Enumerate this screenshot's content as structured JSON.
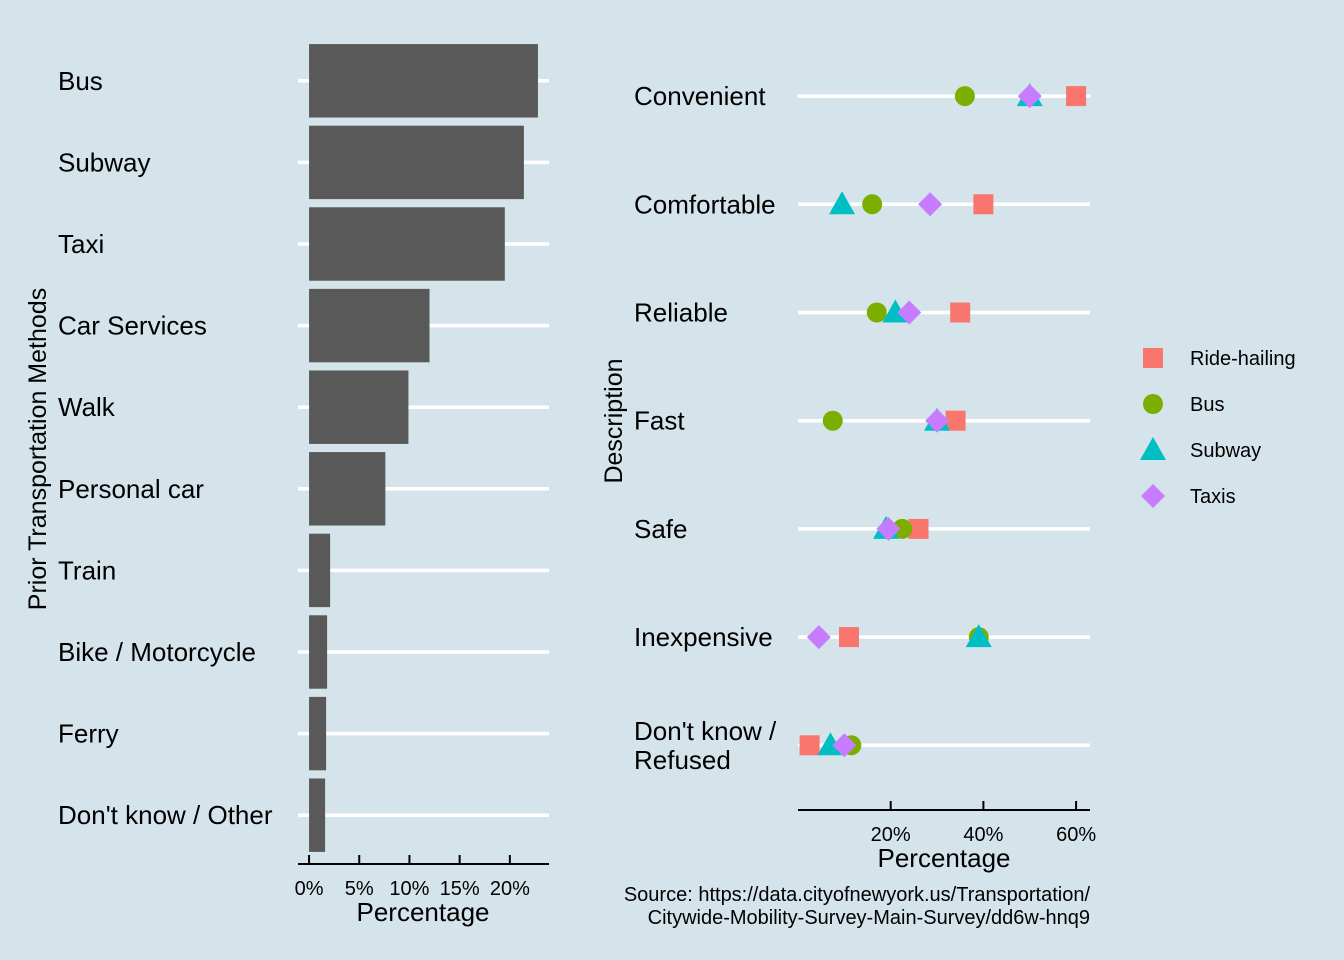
{
  "colors": {
    "background": "#d5e4eb",
    "bar": "#595959",
    "grid": "#ffffff",
    "Ride-hailing": "#f8766d",
    "Bus": "#7cae00",
    "Subway": "#00bfc4",
    "Taxis": "#c77cff"
  },
  "source_line1": "Source: https://data.cityofnewyork.us/Transportation/",
  "source_line2": "Citywide-Mobility-Survey-Main-Survey/dd6w-hnq9",
  "chart_data": [
    {
      "type": "bar",
      "orientation": "horizontal",
      "xlabel": "Percentage",
      "ylabel": "Prior Transportation Methods",
      "xlim": [
        -1.1,
        23.9
      ],
      "xticks": [
        0,
        5,
        10,
        15,
        20
      ],
      "xtick_labels": [
        "0%",
        "5%",
        "10%",
        "15%",
        "20%"
      ],
      "categories": [
        "Bus",
        "Subway",
        "Taxi",
        "Car Services",
        "Walk",
        "Personal car",
        "Train",
        "Bike / Motorcycle",
        "Ferry",
        "Don't know / Other"
      ],
      "values": [
        22.8,
        21.4,
        19.5,
        12.0,
        9.9,
        7.6,
        2.1,
        1.8,
        1.7,
        1.6
      ]
    },
    {
      "type": "scatter",
      "xlabel": "Percentage",
      "ylabel": "Description",
      "xlim": [
        0,
        63
      ],
      "xticks": [
        20,
        40,
        60
      ],
      "xtick_labels": [
        "20%",
        "40%",
        "60%"
      ],
      "categories": [
        "Convenient",
        "Comfortable",
        "Reliable",
        "Fast",
        "Safe",
        "Inexpensive",
        "Don't know / Refused"
      ],
      "category_lines": [
        [
          "Convenient"
        ],
        [
          "Comfortable"
        ],
        [
          "Reliable"
        ],
        [
          "Fast"
        ],
        [
          "Safe"
        ],
        [
          "Inexpensive"
        ],
        [
          "Don't know /",
          "Refused"
        ]
      ],
      "legend_position": "right",
      "series": [
        {
          "name": "Ride-hailing",
          "shape": "square",
          "values": [
            60,
            40,
            35,
            34,
            26,
            11,
            2.5
          ]
        },
        {
          "name": "Bus",
          "shape": "circle",
          "values": [
            36,
            16,
            17,
            7.5,
            22.5,
            39,
            11.5
          ]
        },
        {
          "name": "Subway",
          "shape": "triangle",
          "values": [
            50,
            9.5,
            21,
            30,
            19,
            39,
            7
          ]
        },
        {
          "name": "Taxis",
          "shape": "diamond",
          "values": [
            50,
            28.5,
            24,
            30,
            19.5,
            4.5,
            10
          ]
        }
      ]
    }
  ]
}
